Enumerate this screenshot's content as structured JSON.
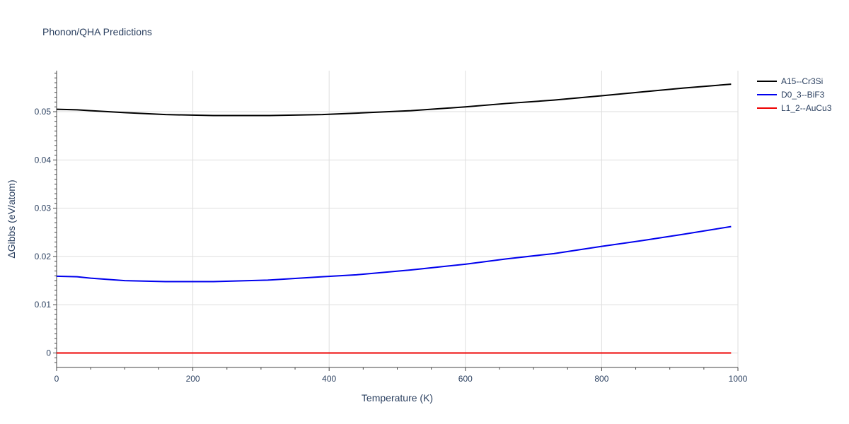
{
  "chart_data": {
    "type": "line",
    "title": "Phonon/QHA Predictions",
    "xlabel": "Temperature (K)",
    "ylabel": "ΔGibbs (eV/atom)",
    "xlim": [
      0,
      1000
    ],
    "ylim": [
      -0.003,
      0.0585
    ],
    "x_ticks": [
      0,
      200,
      400,
      600,
      800,
      1000
    ],
    "x_tick_labels": [
      "0",
      "200",
      "400",
      "600",
      "800",
      "1000"
    ],
    "y_ticks": [
      0,
      0.01,
      0.02,
      0.03,
      0.04,
      0.05
    ],
    "y_tick_labels": [
      "0",
      "0.01",
      "0.02",
      "0.03",
      "0.04",
      "0.05"
    ],
    "grid": true,
    "legend": "top-right",
    "x": [
      0,
      30,
      50,
      100,
      160,
      230,
      310,
      390,
      440,
      520,
      600,
      660,
      730,
      800,
      860,
      920,
      990
    ],
    "series": [
      {
        "name": "A15--Cr3Si",
        "color": "#000000",
        "values": [
          0.0505,
          0.0504,
          0.0502,
          0.0498,
          0.0494,
          0.0492,
          0.0492,
          0.0494,
          0.0497,
          0.0502,
          0.051,
          0.0517,
          0.0524,
          0.0533,
          0.0541,
          0.0549,
          0.0557
        ]
      },
      {
        "name": "D0_3--BiF3",
        "color": "#0000ee",
        "values": [
          0.0159,
          0.0158,
          0.0155,
          0.015,
          0.0148,
          0.0148,
          0.0151,
          0.0158,
          0.0162,
          0.0172,
          0.0184,
          0.0195,
          0.0206,
          0.0221,
          0.0233,
          0.0246,
          0.0262
        ]
      },
      {
        "name": "L1_2--AuCu3",
        "color": "#ee0000",
        "values": [
          0,
          0,
          0,
          0,
          0,
          0,
          0,
          0,
          0,
          0,
          0,
          0,
          0,
          0,
          0,
          0,
          0
        ]
      }
    ]
  }
}
